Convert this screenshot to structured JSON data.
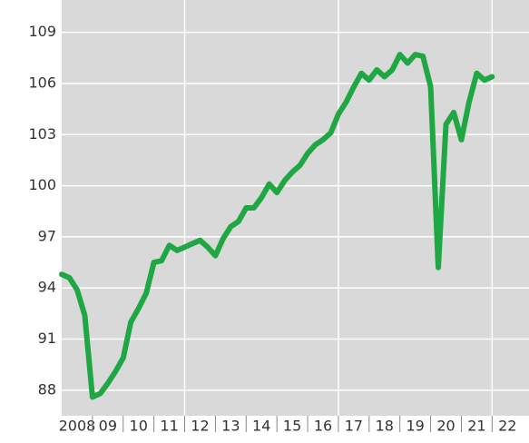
{
  "chart_data": {
    "type": "line",
    "x": [
      2008,
      2008.25,
      2008.5,
      2008.75,
      2009,
      2009.25,
      2009.5,
      2009.75,
      2010,
      2010.25,
      2010.5,
      2010.75,
      2011,
      2011.25,
      2011.5,
      2011.75,
      2012,
      2012.25,
      2012.5,
      2012.75,
      2013,
      2013.25,
      2013.5,
      2013.75,
      2014,
      2014.25,
      2014.5,
      2014.75,
      2015,
      2015.25,
      2015.5,
      2015.75,
      2016,
      2016.25,
      2016.5,
      2016.75,
      2017,
      2017.25,
      2017.5,
      2017.75,
      2018,
      2018.25,
      2018.5,
      2018.75,
      2019,
      2019.25,
      2019.5,
      2019.75,
      2020,
      2020.25,
      2020.5,
      2020.75,
      2021,
      2021.25,
      2021.5,
      2021.75,
      2022
    ],
    "series": [
      {
        "color": "#1fa744",
        "values": [
          94.8,
          94.6,
          93.9,
          92.4,
          87.6,
          87.8,
          88.4,
          89.1,
          89.9,
          92.0,
          92.8,
          93.7,
          95.5,
          95.6,
          96.5,
          96.2,
          96.4,
          96.6,
          96.8,
          96.4,
          95.9,
          96.9,
          97.6,
          97.9,
          98.7,
          98.7,
          99.3,
          100.1,
          99.6,
          100.3,
          100.8,
          101.2,
          101.9,
          102.4,
          102.7,
          103.1,
          104.2,
          104.9,
          105.8,
          106.6,
          106.2,
          106.8,
          106.4,
          106.8,
          107.7,
          107.2,
          107.7,
          107.6,
          105.8,
          95.2,
          103.6,
          104.3,
          102.7,
          104.9,
          106.6,
          106.2,
          106.4
        ]
      }
    ],
    "xlim": [
      2008,
      2023.2
    ],
    "xticks": [
      {
        "value": 2008,
        "label": "2008"
      },
      {
        "value": 2009,
        "label": "09"
      },
      {
        "value": 2010,
        "label": "10"
      },
      {
        "value": 2011,
        "label": "11"
      },
      {
        "value": 2012,
        "label": "12"
      },
      {
        "value": 2013,
        "label": "13"
      },
      {
        "value": 2014,
        "label": "14"
      },
      {
        "value": 2015,
        "label": "15"
      },
      {
        "value": 2016,
        "label": "16"
      },
      {
        "value": 2017,
        "label": "17"
      },
      {
        "value": 2018,
        "label": "18"
      },
      {
        "value": 2019,
        "label": "19"
      },
      {
        "value": 2020,
        "label": "20"
      },
      {
        "value": 2021,
        "label": "21"
      },
      {
        "value": 2022,
        "label": "22"
      }
    ],
    "xgrid": [
      2012,
      2017,
      2022
    ],
    "ylim": [
      86.5,
      110.9
    ],
    "yticks": [
      88,
      91,
      94,
      97,
      100,
      103,
      106,
      109
    ],
    "grid": true
  }
}
